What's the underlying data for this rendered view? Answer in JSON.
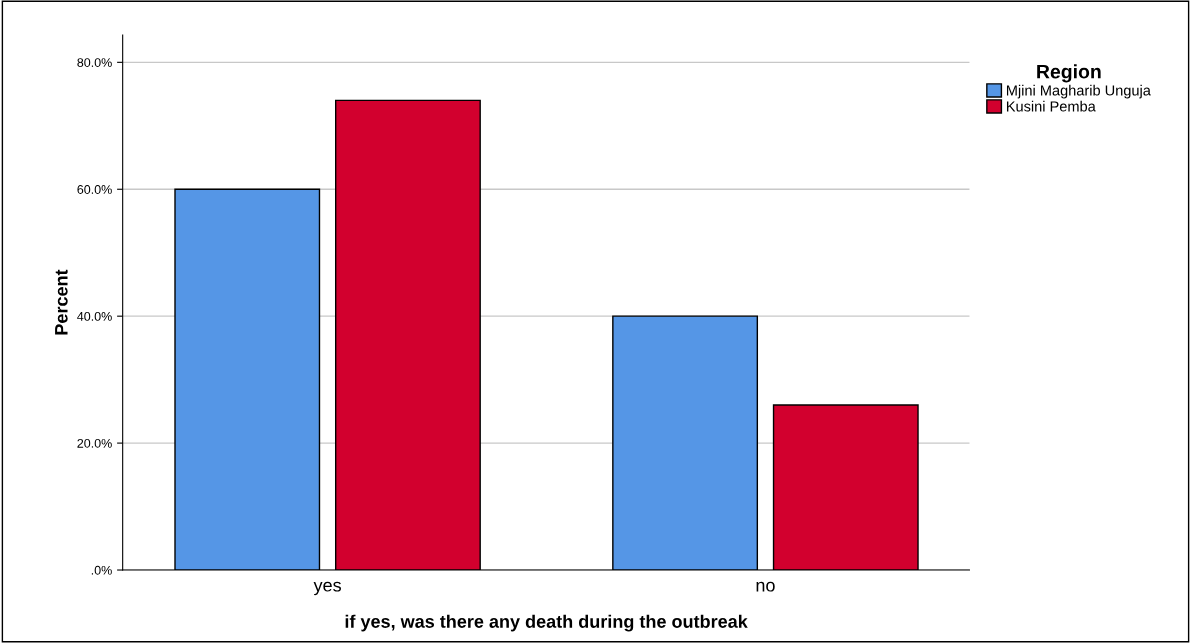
{
  "chart_data": {
    "type": "bar",
    "xlabel": "if yes, was there any death during the outbreak",
    "ylabel": "Percent",
    "legend_title": "Region",
    "categories": [
      "yes",
      "no"
    ],
    "series": [
      {
        "name": "Mjini Magharib Unguja",
        "color": "#5596e6",
        "values": [
          60,
          40
        ]
      },
      {
        "name": "Kusini Pemba",
        "color": "#d2002e",
        "values": [
          74,
          26
        ]
      }
    ],
    "ylim": [
      0,
      84.3
    ],
    "yticks": [
      {
        "value": 0,
        "label": ".0%"
      },
      {
        "value": 20,
        "label": "20.0%"
      },
      {
        "value": 40,
        "label": "40.0%"
      },
      {
        "value": 60,
        "label": "60.0%"
      },
      {
        "value": 80,
        "label": "80.0%"
      }
    ],
    "grid": "y",
    "legend": "top right"
  }
}
